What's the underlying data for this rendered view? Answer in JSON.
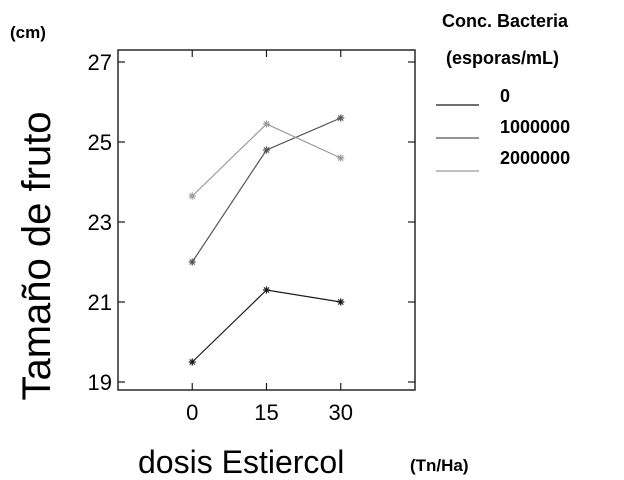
{
  "chart_data": {
    "type": "line",
    "title": "",
    "ylabel": "Tamaño de fruto",
    "ylabel_unit": "(cm)",
    "xlabel": "dosis Estiercol",
    "xlabel_unit": "(Tn/Ha)",
    "categories": [
      "0",
      "15",
      "30"
    ],
    "x_range": [
      -15,
      45
    ],
    "yticks": [
      "19",
      "21",
      "23",
      "25",
      "27"
    ],
    "ylim": [
      18.8,
      27.3
    ],
    "grid": false,
    "legend_title": [
      "Conc. Bacteria",
      "(esporas/mL)"
    ],
    "legend_position": "right",
    "marker": "asterisk",
    "series": [
      {
        "name": "0",
        "color": "#1a1a1a",
        "values": [
          19.5,
          21.3,
          21.0
        ]
      },
      {
        "name": "1000000",
        "color": "#555555",
        "values": [
          22.0,
          24.8,
          25.6
        ]
      },
      {
        "name": "2000000",
        "color": "#9a9a9a",
        "values": [
          23.65,
          25.45,
          24.6
        ]
      }
    ]
  }
}
